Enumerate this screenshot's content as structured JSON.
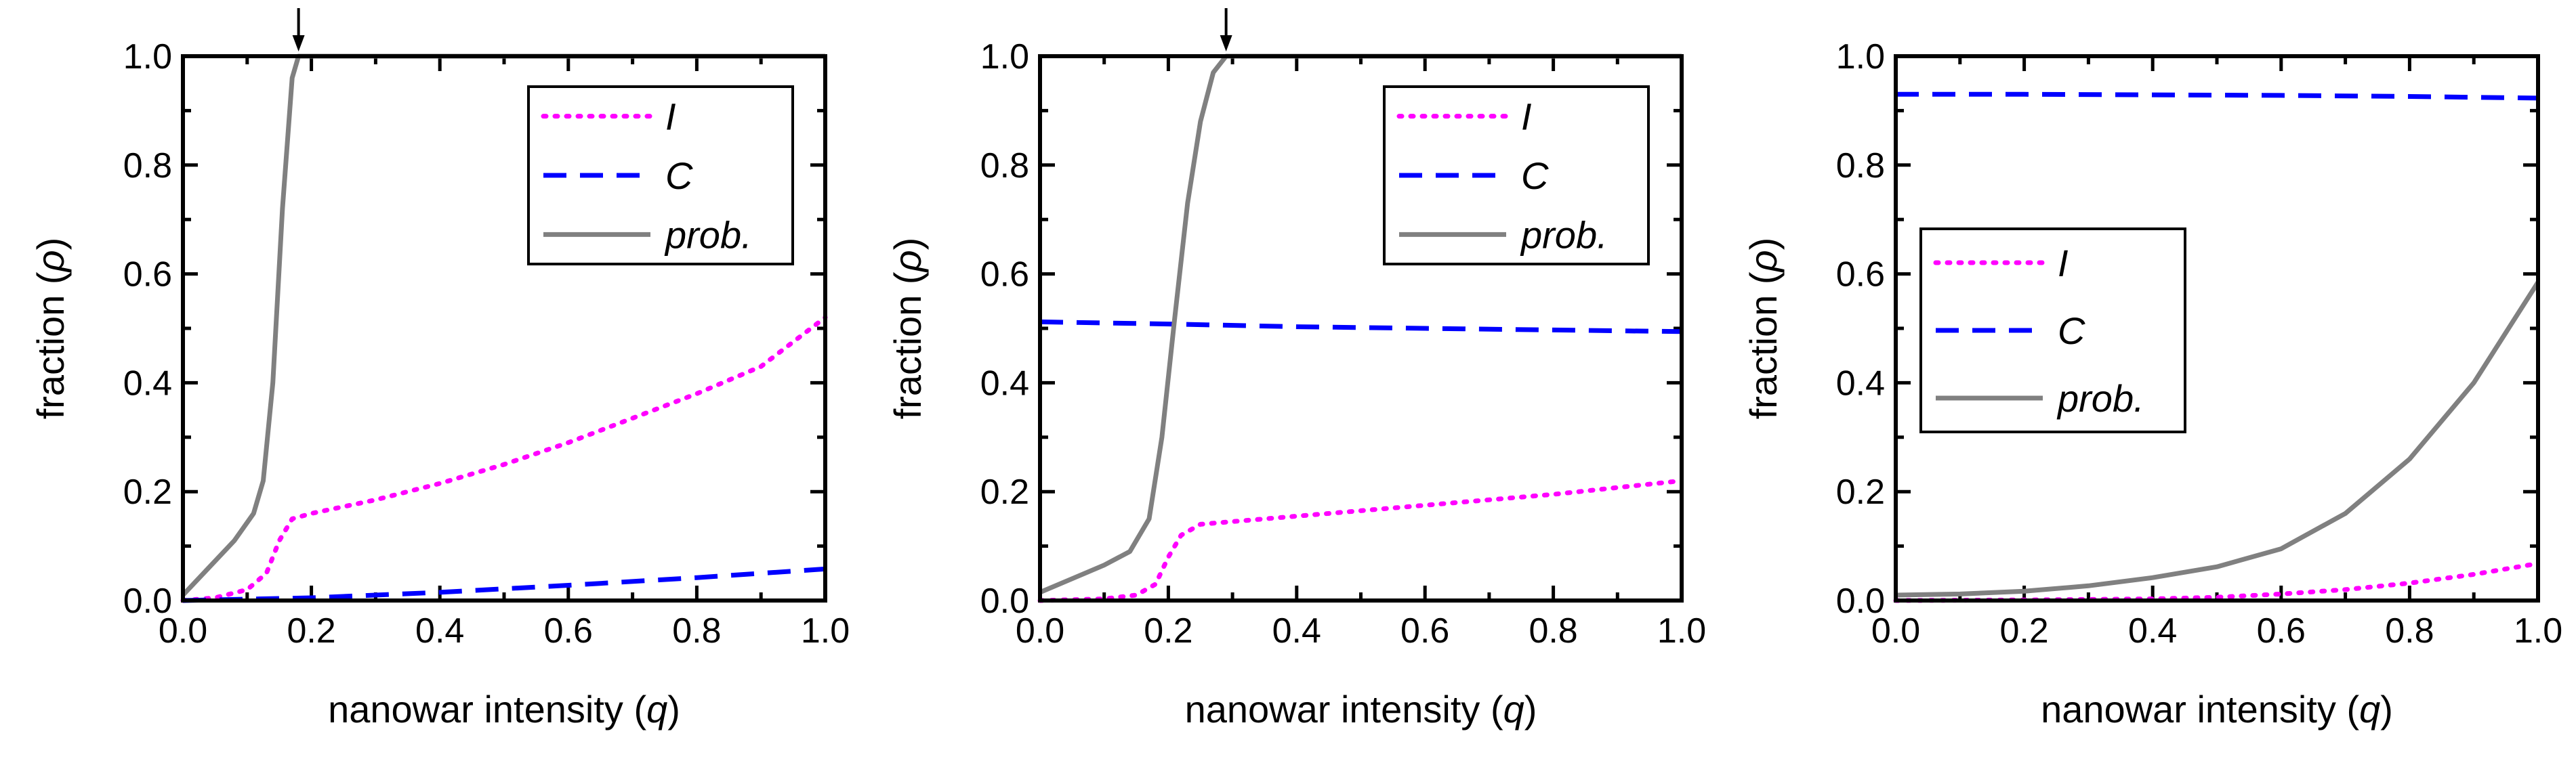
{
  "chart_data": [
    {
      "type": "line",
      "panel": "left",
      "xlabel": "nanowar intensity",
      "xlabel_var": "q",
      "ylabel": "fraction",
      "ylabel_var": "ρ",
      "xlim": [
        0.0,
        1.0
      ],
      "ylim": [
        0.0,
        1.0
      ],
      "xticks": [
        "0.0",
        "0.2",
        "0.4",
        "0.6",
        "0.8",
        "1.0"
      ],
      "yticks": [
        "0.0",
        "0.2",
        "0.4",
        "0.6",
        "0.8",
        "1.0"
      ],
      "legend_position": "top-right",
      "arrow_marker_x": 0.18,
      "series": [
        {
          "name": "I",
          "style": "dotted",
          "color": "#ff00ff",
          "x": [
            0,
            0.05,
            0.1,
            0.13,
            0.15,
            0.17,
            0.2,
            0.3,
            0.4,
            0.5,
            0.6,
            0.7,
            0.8,
            0.9,
            1.0
          ],
          "y": [
            0.0,
            0.005,
            0.02,
            0.05,
            0.11,
            0.15,
            0.16,
            0.185,
            0.215,
            0.25,
            0.29,
            0.335,
            0.38,
            0.43,
            0.52
          ]
        },
        {
          "name": "C",
          "style": "dashed",
          "color": "#0000ff",
          "x": [
            0,
            0.2,
            0.4,
            0.6,
            0.8,
            1.0
          ],
          "y": [
            0.0,
            0.005,
            0.015,
            0.028,
            0.042,
            0.058
          ]
        },
        {
          "name": "prob.",
          "style": "solid",
          "color": "#808080",
          "x": [
            0,
            0.04,
            0.08,
            0.11,
            0.125,
            0.14,
            0.155,
            0.17,
            0.18,
            0.2,
            1.0
          ],
          "y": [
            0.01,
            0.06,
            0.11,
            0.16,
            0.22,
            0.4,
            0.72,
            0.96,
            1.0,
            1.0,
            1.0
          ]
        }
      ]
    },
    {
      "type": "line",
      "panel": "middle",
      "xlabel": "nanowar intensity",
      "xlabel_var": "q",
      "ylabel": "fraction",
      "ylabel_var": "ρ",
      "xlim": [
        0.0,
        1.0
      ],
      "ylim": [
        0.0,
        1.0
      ],
      "xticks": [
        "0.0",
        "0.2",
        "0.4",
        "0.6",
        "0.8",
        "1.0"
      ],
      "yticks": [
        "0.0",
        "0.2",
        "0.4",
        "0.6",
        "0.8",
        "1.0"
      ],
      "legend_position": "top-right",
      "arrow_marker_x": 0.29,
      "series": [
        {
          "name": "I",
          "style": "dotted",
          "color": "#ff00ff",
          "x": [
            0,
            0.1,
            0.15,
            0.18,
            0.2,
            0.22,
            0.25,
            0.3,
            0.4,
            0.6,
            0.8,
            1.0
          ],
          "y": [
            0.0,
            0.003,
            0.01,
            0.03,
            0.08,
            0.12,
            0.14,
            0.145,
            0.155,
            0.175,
            0.195,
            0.22
          ]
        },
        {
          "name": "C",
          "style": "dashed",
          "color": "#0000ff",
          "x": [
            0,
            0.2,
            0.4,
            0.6,
            0.8,
            1.0
          ],
          "y": [
            0.512,
            0.508,
            0.503,
            0.5,
            0.497,
            0.494
          ]
        },
        {
          "name": "prob.",
          "style": "solid",
          "color": "#808080",
          "x": [
            0,
            0.05,
            0.1,
            0.14,
            0.17,
            0.19,
            0.21,
            0.23,
            0.25,
            0.27,
            0.29,
            0.3,
            1.0
          ],
          "y": [
            0.015,
            0.04,
            0.065,
            0.09,
            0.15,
            0.3,
            0.52,
            0.73,
            0.88,
            0.97,
            1.0,
            1.0,
            1.0
          ]
        }
      ]
    },
    {
      "type": "line",
      "panel": "right",
      "xlabel": "nanowar intensity",
      "xlabel_var": "q",
      "ylabel": "fraction",
      "ylabel_var": "ρ",
      "xlim": [
        0.0,
        1.0
      ],
      "ylim": [
        0.0,
        1.0
      ],
      "xticks": [
        "0.0",
        "0.2",
        "0.4",
        "0.6",
        "0.8",
        "1.0"
      ],
      "yticks": [
        "0.0",
        "0.2",
        "0.4",
        "0.6",
        "0.8",
        "1.0"
      ],
      "legend_position": "middle-left",
      "series": [
        {
          "name": "I",
          "style": "dotted",
          "color": "#ff00ff",
          "x": [
            0,
            0.2,
            0.4,
            0.5,
            0.6,
            0.7,
            0.8,
            0.9,
            1.0
          ],
          "y": [
            0.0,
            0.001,
            0.003,
            0.006,
            0.012,
            0.02,
            0.032,
            0.048,
            0.068
          ]
        },
        {
          "name": "C",
          "style": "dashed",
          "color": "#0000ff",
          "x": [
            0,
            0.2,
            0.4,
            0.6,
            0.8,
            1.0
          ],
          "y": [
            0.93,
            0.93,
            0.929,
            0.928,
            0.926,
            0.923
          ]
        },
        {
          "name": "prob.",
          "style": "solid",
          "color": "#808080",
          "x": [
            0,
            0.1,
            0.2,
            0.3,
            0.4,
            0.5,
            0.6,
            0.7,
            0.8,
            0.9,
            1.0
          ],
          "y": [
            0.01,
            0.012,
            0.017,
            0.027,
            0.042,
            0.062,
            0.095,
            0.16,
            0.26,
            0.4,
            0.585
          ]
        }
      ]
    }
  ]
}
